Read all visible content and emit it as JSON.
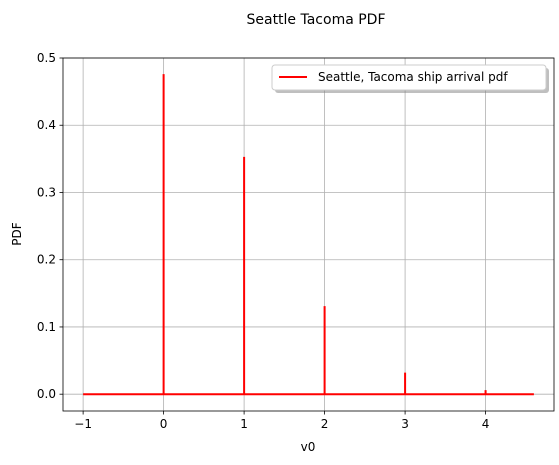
{
  "chart_data": {
    "type": "line",
    "title": "Seattle Tacoma PDF",
    "xlabel": "v0",
    "ylabel": "PDF",
    "xlim": [
      -1.25,
      4.85
    ],
    "ylim": [
      -0.025,
      0.5
    ],
    "xticks": [
      -1,
      0,
      1,
      2,
      3,
      4
    ],
    "xtick_labels": [
      "−1",
      "0",
      "1",
      "2",
      "3",
      "4"
    ],
    "yticks": [
      0.0,
      0.1,
      0.2,
      0.3,
      0.4,
      0.5
    ],
    "ytick_labels": [
      "0.0",
      "0.1",
      "0.2",
      "0.3",
      "0.4",
      "0.5"
    ],
    "grid": true,
    "legend_position": "top-right",
    "series": [
      {
        "name": "Seattle, Tacoma ship arrival pdf",
        "color": "#ff0000",
        "x": [
          -1,
          0,
          0,
          0,
          1,
          1,
          1,
          2,
          2,
          2,
          3,
          3,
          3,
          4,
          4,
          4,
          4.6
        ],
        "y": [
          0,
          0,
          0.476,
          0,
          0,
          0.353,
          0,
          0,
          0.131,
          0,
          0,
          0.032,
          0,
          0,
          0.006,
          0,
          0
        ]
      }
    ]
  }
}
